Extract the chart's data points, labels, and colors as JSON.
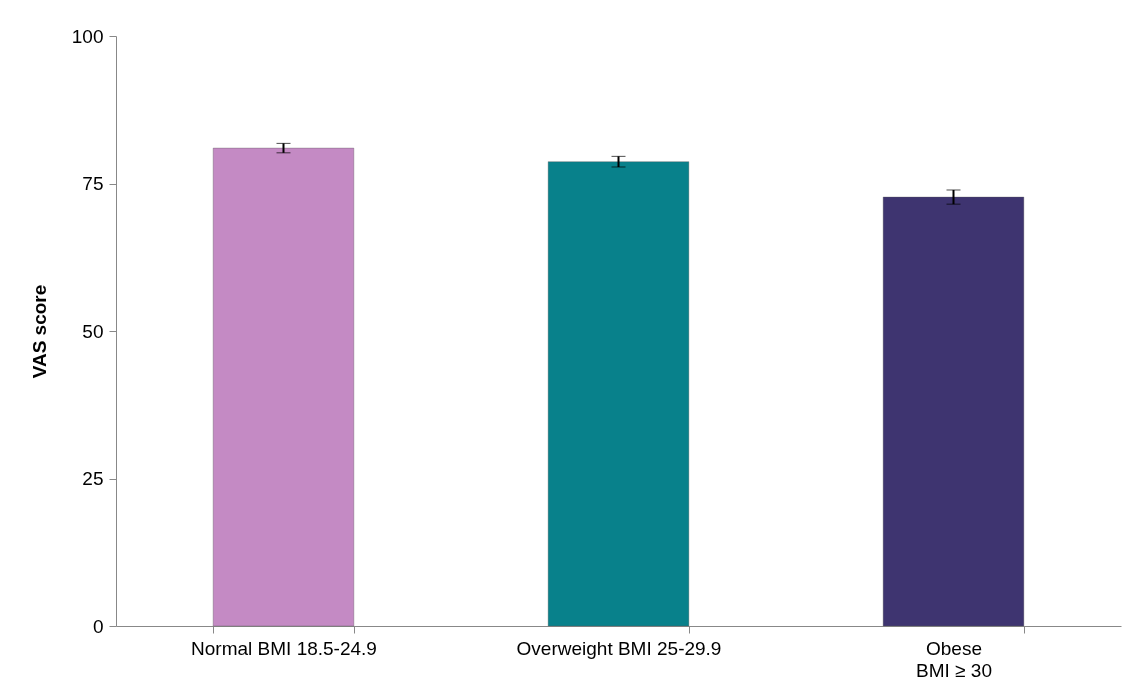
{
  "chart_data": {
    "type": "bar",
    "ylabel": "VAS score",
    "categories": [
      "Normal BMI 18.5-24.9",
      "Overweight BMI 25-29.9",
      "Obese\nBMI ≥ 30"
    ],
    "values": [
      81.0,
      78.7,
      72.7
    ],
    "errors": [
      0.8,
      0.9,
      1.2
    ],
    "colors": [
      "#c48ac4",
      "#08818b",
      "#3e3470"
    ],
    "ylim": [
      0,
      100
    ],
    "yticks": [
      0,
      25,
      50,
      75,
      100
    ],
    "grid": false
  }
}
